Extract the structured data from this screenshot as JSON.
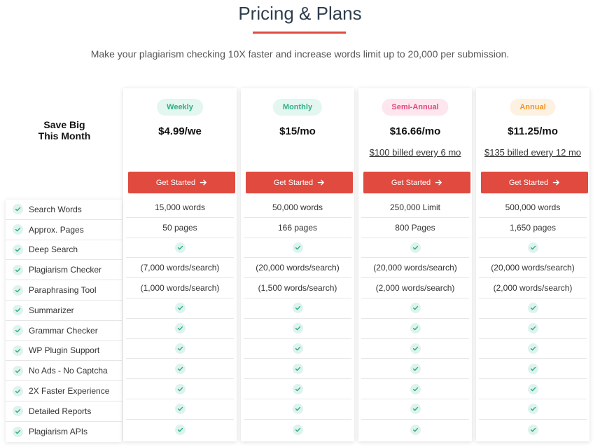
{
  "header": {
    "title": "Pricing & Plans",
    "subtitle": "Make your plagiarism checking 10X faster and increase words limit up to 20,000 per submission."
  },
  "save_big": {
    "line1": "Save Big",
    "line2": "This Month"
  },
  "features": [
    "Search Words",
    "Approx. Pages",
    "Deep Search",
    "Plagiarism Checker",
    "Paraphrasing Tool",
    "Summarizer",
    "Grammar Checker",
    "WP Plugin Support",
    "No Ads - No Captcha",
    "2X Faster Experience",
    "Detailed Reports",
    "Plagiarism APIs"
  ],
  "plans": [
    {
      "name": "Weekly",
      "price": "$4.99/we",
      "billed": "",
      "cta": "Get Started",
      "badge_bg": "#e3f6ef",
      "badge_color": "#2fae87",
      "values": [
        "15,000 words",
        "50 pages",
        "check",
        "(7,000 words/search)",
        "(1,000 words/search)",
        "check",
        "check",
        "check",
        "check",
        "check",
        "check",
        "check"
      ]
    },
    {
      "name": "Monthly",
      "price": "$15/mo",
      "billed": "",
      "cta": "Get Started",
      "badge_bg": "#e3f6ef",
      "badge_color": "#2fae87",
      "values": [
        "50,000 words",
        "166 pages",
        "check",
        "(20,000 words/search)",
        "(1,500 words/search)",
        "check",
        "check",
        "check",
        "check",
        "check",
        "check",
        "check"
      ]
    },
    {
      "name": "Semi-Annual",
      "price": "$16.66/mo",
      "billed": "$100 billed every 6 mo",
      "cta": "Get Started",
      "badge_bg": "#fde6ee",
      "badge_color": "#e0497a",
      "values": [
        "250,000 Limit",
        "800 Pages",
        "check",
        "(20,000 words/search)",
        "(2,000 words/search)",
        "check",
        "check",
        "check",
        "check",
        "check",
        "check",
        "check"
      ]
    },
    {
      "name": "Annual",
      "price": "$11.25/mo",
      "billed": "$135 billed every 12 mo",
      "cta": "Get Started",
      "badge_bg": "#fdf1e2",
      "badge_color": "#f0962a",
      "values": [
        "500,000 words",
        "1,650 pages",
        "check",
        "(20,000 words/search)",
        "(2,000 words/search)",
        "check",
        "check",
        "check",
        "check",
        "check",
        "check",
        "check"
      ]
    }
  ],
  "colors": {
    "accent": "#e04a3f",
    "check": "#2fae87",
    "check_bg": "#dff3ee"
  },
  "icons": {
    "check": "check-icon",
    "arrow": "arrow-right-icon"
  }
}
